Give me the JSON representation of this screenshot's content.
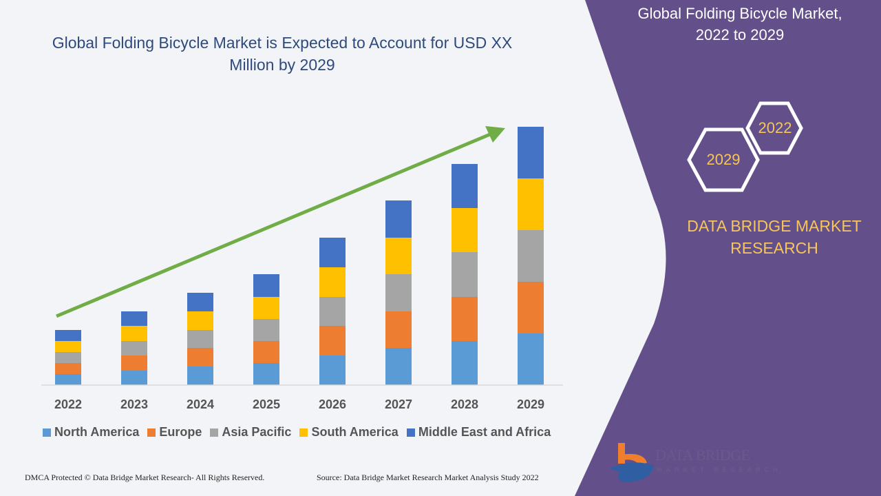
{
  "chart_data": {
    "type": "bar",
    "stacked": true,
    "title": "Global Folding Bicycle Market is Expected to Account for USD XX Million by 2029",
    "xlabel": "",
    "ylabel": "",
    "categories": [
      "2022",
      "2023",
      "2024",
      "2025",
      "2026",
      "2027",
      "2028",
      "2029"
    ],
    "series": [
      {
        "name": "North America",
        "color": "#5b9bd5",
        "values": [
          16,
          21,
          27,
          32,
          43,
          54,
          64,
          75
        ]
      },
      {
        "name": "Europe",
        "color": "#ed7d31",
        "values": [
          16,
          22,
          27,
          32,
          43,
          53,
          64,
          75
        ]
      },
      {
        "name": "Asia Pacific",
        "color": "#a5a5a5",
        "values": [
          16,
          21,
          26,
          32,
          42,
          54,
          65,
          75
        ]
      },
      {
        "name": "South America",
        "color": "#ffc000",
        "values": [
          16,
          22,
          27,
          32,
          43,
          53,
          64,
          75
        ]
      },
      {
        "name": "Middle East and Africa",
        "color": "#4472c4",
        "values": [
          16,
          21,
          27,
          33,
          43,
          54,
          64,
          75
        ]
      }
    ],
    "y_axis_shown": false,
    "grid": false,
    "legend_position": "bottom",
    "trend_arrow_color": "#70ad47"
  },
  "panel": {
    "title_line1": "Global Folding Bicycle Market,",
    "title_line2": "2022 to 2029",
    "hex_start": "2022",
    "hex_end": "2029",
    "brand_line1": "DATA BRIDGE MARKET",
    "brand_line2": "RESEARCH",
    "background_color": "#634f8a"
  },
  "logo": {
    "name": "DATA BRIDGE",
    "tagline": "MARKET RESEARCH"
  },
  "footer": {
    "copyright": "DMCA Protected © Data Bridge Market Research- All Rights Reserved.",
    "source": "Source: Data Bridge Market Research Market Analysis Study 2022"
  }
}
